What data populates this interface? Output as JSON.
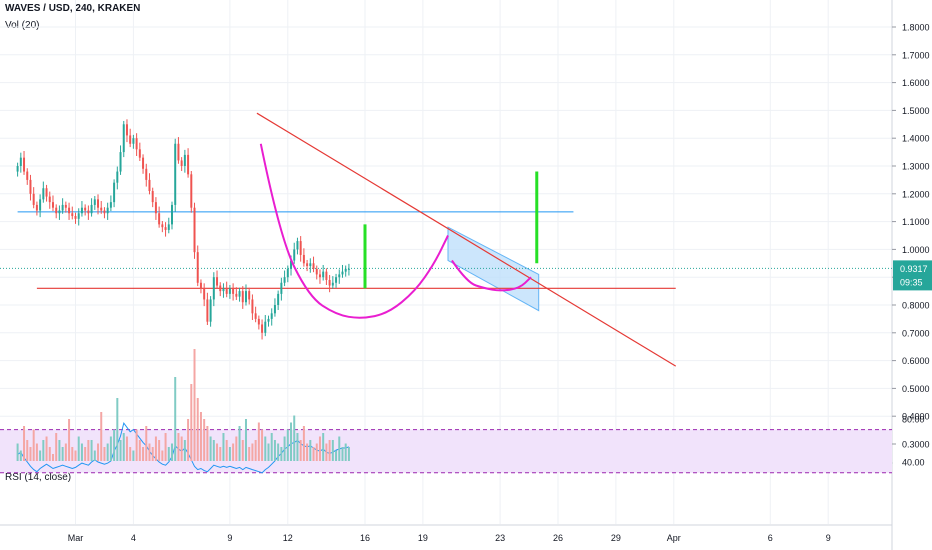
{
  "legend": {
    "symbol": "WAVES / USD, 240, KRAKEN",
    "volume": "Vol (20)",
    "rsi": "RSI (14, close)"
  },
  "colors": {
    "up": "#26a69a",
    "down": "#ef5350",
    "vol_up": "#80cbc4",
    "vol_down": "#f4a6a4",
    "trendline": "#e53935",
    "support": "#2196f3",
    "resistance": "#e53935",
    "cup": "#e91ed0",
    "target": "#26e026",
    "channel_fill": "#bbdefb",
    "channel_edge": "#64b5f6",
    "price_line": "#26a69a",
    "rsi_line": "#2196f3",
    "rsi_band": "#f1e3fb",
    "rsi_band_edge": "#9c27b0",
    "grid": "#eef1f5",
    "axis_text": "#131722"
  },
  "price_badge": {
    "value": "0.9317",
    "countdown": "09:35"
  },
  "chart_data": [
    {
      "type": "candlestick",
      "title": "WAVES / USD, 240, KRAKEN",
      "price_axis_labels": [
        "1.8000",
        "1.7000",
        "1.6000",
        "1.5000",
        "1.4000",
        "1.3000",
        "1.2000",
        "1.1000",
        "1.0000",
        "0.9000",
        "0.8000",
        "0.7000",
        "0.6000",
        "0.5000",
        "0.4000",
        "0.3000"
      ],
      "x_tick_labels": [
        {
          "label": "Mar",
          "day": 1
        },
        {
          "label": "4",
          "day": 4
        },
        {
          "label": "9",
          "day": 9
        },
        {
          "label": "12",
          "day": 12
        },
        {
          "label": "16",
          "day": 16
        },
        {
          "label": "19",
          "day": 19
        },
        {
          "label": "23",
          "day": 23
        },
        {
          "label": "26",
          "day": 26
        },
        {
          "label": "29",
          "day": 29
        },
        {
          "label": "Apr",
          "day": 32
        },
        {
          "label": "6",
          "day": 37
        },
        {
          "label": "9",
          "day": 40
        }
      ],
      "x_unit": "day (Mar = 1, Apr = 32)",
      "ylim": [
        0.26,
        1.86
      ],
      "candles_per_day": 6,
      "first_candle_day": -2,
      "closes": [
        1.3,
        1.33,
        1.28,
        1.25,
        1.2,
        1.16,
        1.14,
        1.18,
        1.22,
        1.19,
        1.17,
        1.15,
        1.13,
        1.14,
        1.16,
        1.15,
        1.13,
        1.12,
        1.11,
        1.13,
        1.15,
        1.14,
        1.13,
        1.16,
        1.18,
        1.15,
        1.14,
        1.13,
        1.15,
        1.17,
        1.24,
        1.28,
        1.35,
        1.45,
        1.41,
        1.38,
        1.4,
        1.36,
        1.33,
        1.29,
        1.25,
        1.21,
        1.17,
        1.13,
        1.09,
        1.08,
        1.07,
        1.09,
        1.16,
        1.38,
        1.32,
        1.3,
        1.34,
        1.27,
        1.15,
        0.99,
        0.88,
        0.86,
        0.82,
        0.74,
        0.82,
        0.9,
        0.87,
        0.85,
        0.86,
        0.84,
        0.86,
        0.84,
        0.83,
        0.85,
        0.81,
        0.85,
        0.82,
        0.77,
        0.75,
        0.73,
        0.7,
        0.74,
        0.75,
        0.77,
        0.8,
        0.84,
        0.88,
        0.9,
        0.93,
        0.96,
        1.0,
        1.03,
        0.98,
        0.95,
        0.94,
        0.95,
        0.93,
        0.91,
        0.9,
        0.92,
        0.89,
        0.87,
        0.88,
        0.9,
        0.91,
        0.92,
        0.93,
        0.93
      ],
      "volume": [
        0.25,
        0.15,
        0.5,
        0.3,
        0.2,
        0.45,
        0.25,
        0.15,
        0.3,
        0.35,
        0.2,
        0.1,
        0.4,
        0.3,
        0.2,
        0.25,
        0.6,
        0.2,
        0.15,
        0.35,
        0.25,
        0.2,
        0.3,
        0.3,
        0.15,
        0.25,
        0.7,
        0.2,
        0.25,
        0.35,
        0.45,
        0.9,
        0.3,
        0.4,
        0.35,
        0.2,
        0.15,
        0.45,
        0.3,
        0.2,
        0.5,
        0.25,
        0.2,
        0.35,
        0.3,
        0.15,
        0.4,
        0.2,
        0.25,
        1.2,
        0.4,
        0.35,
        0.3,
        0.6,
        1.1,
        1.6,
        0.9,
        0.7,
        0.6,
        0.5,
        0.35,
        0.3,
        0.25,
        0.2,
        0.4,
        0.3,
        0.2,
        0.25,
        0.35,
        0.5,
        0.3,
        0.6,
        0.2,
        0.25,
        0.3,
        0.55,
        0.45,
        0.35,
        0.25,
        0.4,
        0.3,
        0.25,
        0.2,
        0.35,
        0.45,
        0.55,
        0.65,
        0.4,
        0.3,
        0.5,
        0.25,
        0.3,
        0.2,
        0.25,
        0.35,
        0.4,
        0.25,
        0.3,
        0.3,
        0.15,
        0.35,
        0.2,
        0.25,
        0.2
      ],
      "drawings": {
        "trendline": {
          "from": [
            10.4,
            1.49
          ],
          "to": [
            32.1,
            0.58
          ]
        },
        "support_line": {
          "from": [
            -2.0,
            1.135
          ],
          "to": [
            26.8,
            1.135
          ]
        },
        "resistance_line": {
          "from": [
            -1.0,
            0.86
          ],
          "to": [
            32.1,
            0.86
          ]
        },
        "current_price_line": 0.9317,
        "target_bars": [
          {
            "day": 16.0,
            "from": 0.86,
            "to": 1.09
          },
          {
            "day": 24.9,
            "from": 0.95,
            "to": 1.28
          }
        ],
        "cup": [
          [
            10.6,
            1.38
          ],
          [
            11.6,
            1.04
          ],
          [
            13.1,
            0.83
          ],
          [
            14.5,
            0.765
          ],
          [
            15.8,
            0.75
          ],
          [
            17.2,
            0.77
          ],
          [
            18.6,
            0.85
          ],
          [
            19.6,
            0.95
          ],
          [
            20.3,
            1.05
          ]
        ],
        "handle": [
          [
            20.5,
            0.96
          ],
          [
            21.3,
            0.88
          ],
          [
            22.2,
            0.86
          ],
          [
            23.0,
            0.85
          ],
          [
            24.0,
            0.86
          ],
          [
            24.6,
            0.9
          ]
        ],
        "channel": [
          [
            20.3,
            1.08
          ],
          [
            25.0,
            0.91
          ],
          [
            25.0,
            0.78
          ],
          [
            20.3,
            0.96
          ]
        ]
      }
    },
    {
      "type": "line",
      "title": "RSI (14, close)",
      "y_axis_labels": [
        "80.00",
        "40.00"
      ],
      "ylim": [
        20,
        90
      ],
      "band": [
        30,
        70
      ],
      "values": [
        47,
        49,
        44,
        40,
        36,
        33,
        31,
        34,
        36,
        38,
        36,
        34,
        35,
        36,
        37,
        36,
        35,
        34,
        35,
        37,
        39,
        38,
        37,
        40,
        42,
        40,
        39,
        38,
        39,
        41,
        50,
        56,
        64,
        76,
        72,
        68,
        70,
        66,
        62,
        58,
        55,
        50,
        46,
        43,
        40,
        38,
        37,
        40,
        45,
        55,
        52,
        50,
        53,
        48,
        42,
        36,
        33,
        34,
        32,
        31,
        34,
        37,
        36,
        35,
        36,
        35,
        36,
        35,
        34,
        35,
        33,
        35,
        34,
        33,
        32,
        31,
        30,
        33,
        35,
        38,
        41,
        45,
        48,
        52,
        54,
        57,
        58,
        60,
        57,
        55,
        54,
        55,
        53,
        51,
        50,
        52,
        49,
        48,
        49,
        51,
        52,
        53,
        53,
        54
      ]
    }
  ]
}
